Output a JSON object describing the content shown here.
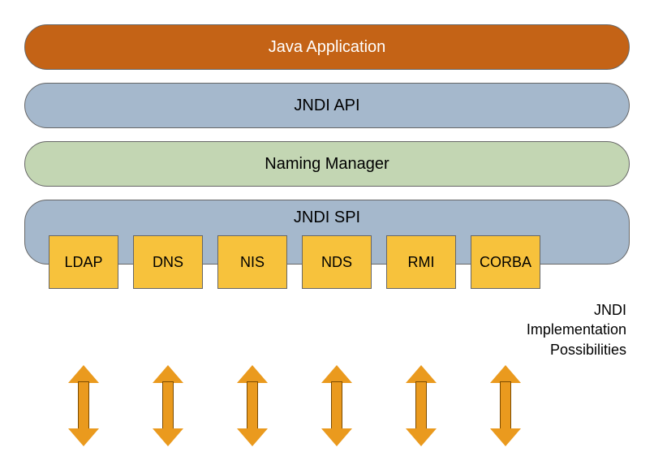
{
  "diagram": {
    "type": "infographic",
    "layers": {
      "application": {
        "label": "Java Application",
        "bg": "#c46316",
        "text_color": "#ffffff"
      },
      "api": {
        "label": "JNDI API",
        "bg": "#a5b8cc",
        "text_color": "#000000"
      },
      "naming": {
        "label": "Naming Manager",
        "bg": "#c3d6b3",
        "text_color": "#000000"
      },
      "spi": {
        "label": "JNDI SPI",
        "bg": "#a5b8cc",
        "text_color": "#000000"
      }
    },
    "implementations": [
      {
        "label": "LDAP"
      },
      {
        "label": "DNS"
      },
      {
        "label": "NIS"
      },
      {
        "label": "NDS"
      },
      {
        "label": "RMI"
      },
      {
        "label": "CORBA"
      }
    ],
    "impl_box_style": {
      "bg": "#f7c23c",
      "border": "#666666"
    },
    "arrow_style": {
      "fill": "#ea9a1e",
      "border": "#7a4a00"
    },
    "side_label_line1": "JNDI",
    "side_label_line2": "Implementation",
    "side_label_line3": "Possibilities",
    "bar_border_radius": 28,
    "font_size_bar": 20,
    "font_size_box": 18,
    "font_size_side": 18,
    "background_color": "#ffffff"
  }
}
